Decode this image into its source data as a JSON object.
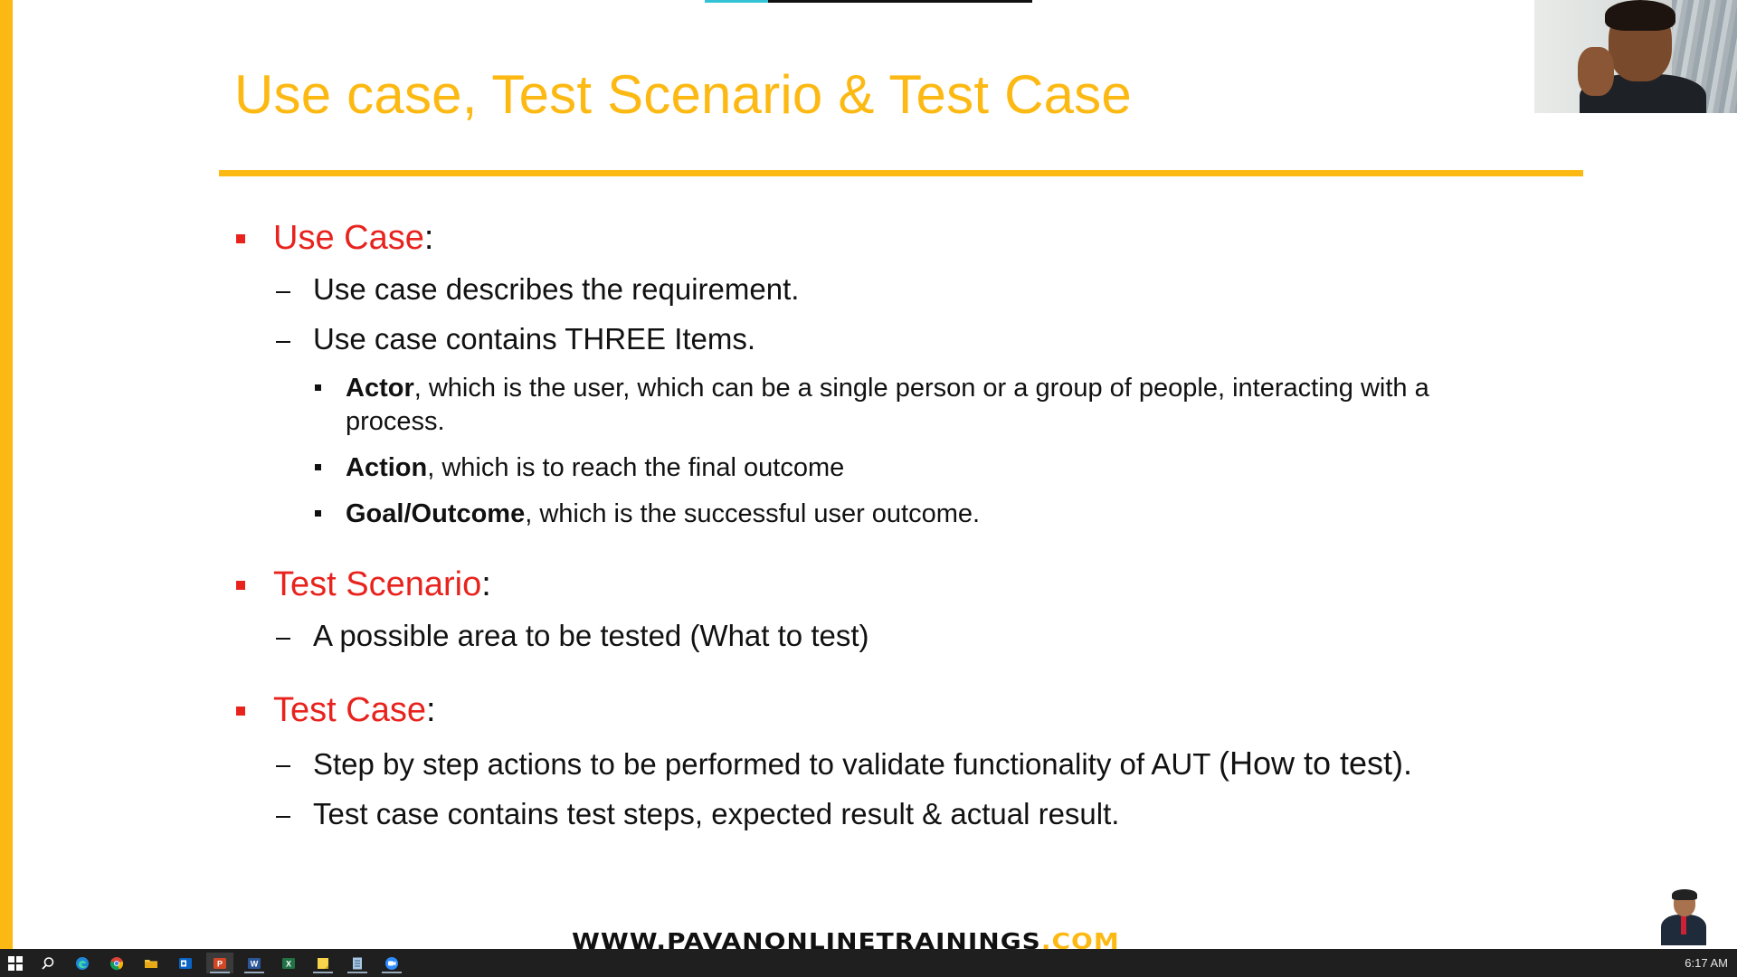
{
  "slide": {
    "title": "Use case, Test Scenario & Test Case",
    "sections": [
      {
        "heading": "Use Case",
        "colon": ":",
        "items": [
          {
            "text": "Use case describes the requirement."
          },
          {
            "text": "Use case contains THREE Items."
          }
        ],
        "subitems": [
          {
            "bold": "Actor",
            "rest": ", which is the user, which can be a single person or a group of people, interacting with a",
            "rest2": "process."
          },
          {
            "bold": "Action",
            "rest": ", which is to reach the final outcome"
          },
          {
            "bold": "Goal/Outcome",
            "rest": ", which is the successful user outcome."
          }
        ]
      },
      {
        "heading": "Test Scenario",
        "colon": ":",
        "items": [
          {
            "text": "A possible area to be tested (What to test)"
          }
        ]
      },
      {
        "heading": "Test Case",
        "colon": ":",
        "items": [
          {
            "text": "Step by step actions to be performed to validate functionality of AUT ",
            "suffix": "(How to test)."
          },
          {
            "text": "Test case contains test steps, expected result & actual result."
          }
        ]
      }
    ],
    "watermark": {
      "main": "WWW.PAVANONLINETRAININGS",
      "suffix": ".COM"
    }
  },
  "taskbar": {
    "icons": [
      "windows-start-icon",
      "search-icon",
      "edge-icon",
      "chrome-icon",
      "file-explorer-icon",
      "outlook-icon",
      "powerpoint-icon",
      "word-icon",
      "excel-icon",
      "sticky-notes-icon",
      "notepad-icon",
      "zoom-icon"
    ],
    "clock": "6:17 AM"
  },
  "colors": {
    "accent": "#FDB913",
    "heading_red": "#E8231E",
    "taskbar": "#1f1f1f"
  }
}
